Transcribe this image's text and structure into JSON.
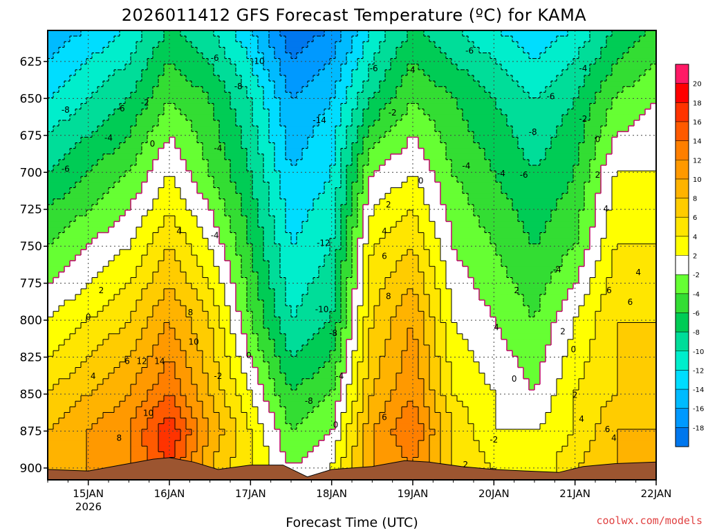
{
  "title": "2026011412 GFS Forecast Temperature (ºC) for KAMA",
  "xlabel": "Forecast Time (UTC)",
  "credit": "coolwx.com/models",
  "chart_data": {
    "type": "heatmap",
    "title": "2026011412 GFS Forecast Temperature (ºC) for KAMA",
    "xlabel": "Forecast Time (UTC)",
    "ylabel": "",
    "y_axis": {
      "ticks": [
        625,
        650,
        675,
        700,
        725,
        750,
        775,
        800,
        825,
        850,
        875,
        900
      ],
      "range": [
        604,
        908
      ],
      "inverted": true
    },
    "x_axis": {
      "tick_labels": [
        "15JAN",
        "16JAN",
        "17JAN",
        "18JAN",
        "19JAN",
        "20JAN",
        "21JAN",
        "22JAN"
      ],
      "sublabel": "2026",
      "range_days": [
        14.5,
        22.0
      ]
    },
    "colorbar": {
      "labels": [
        20,
        18,
        16,
        14,
        12,
        10,
        8,
        6,
        4,
        2,
        -2,
        -4,
        -6,
        -8,
        -10,
        -12,
        -14,
        -16,
        -18
      ],
      "colors": [
        "#ff1a66",
        "#ff0000",
        "#ff3300",
        "#ff5a00",
        "#ff7f00",
        "#ff9900",
        "#ffb300",
        "#ffcc00",
        "#ffe600",
        "#ffff00",
        "#ffffff",
        "#66ff33",
        "#33dd33",
        "#00cc55",
        "#00dd99",
        "#00eecc",
        "#00ddff",
        "#00bbff",
        "#0099ff",
        "#0077ee"
      ],
      "ranges": [
        [
          20,
          22
        ],
        [
          18,
          20
        ],
        [
          16,
          18
        ],
        [
          14,
          16
        ],
        [
          12,
          14
        ],
        [
          10,
          12
        ],
        [
          8,
          10
        ],
        [
          6,
          8
        ],
        [
          4,
          6
        ],
        [
          2,
          4
        ],
        [
          0,
          2
        ],
        [
          -2,
          0
        ],
        [
          -4,
          -2
        ],
        [
          -6,
          -4
        ],
        [
          -8,
          -6
        ],
        [
          -10,
          -8
        ],
        [
          -12,
          -10
        ],
        [
          -14,
          -12
        ],
        [
          -16,
          -14
        ],
        [
          -18,
          -16
        ]
      ]
    },
    "columns_temperature_by_pressure": [
      {
        "time": 14.5,
        "p650": -10,
        "p700": -6,
        "p750": -2,
        "p800": 2,
        "p850": 6,
        "p875": 8,
        "p900": 9
      },
      {
        "time": 15.0,
        "p650": -8,
        "p700": -4,
        "p750": 0,
        "p800": 4,
        "p850": 8,
        "p875": 10,
        "p900": 10
      },
      {
        "time": 15.5,
        "p650": -6,
        "p700": -2,
        "p750": 2,
        "p800": 6,
        "p850": 10,
        "p875": 12,
        "p900": 12
      },
      {
        "time": 16.0,
        "p650": -2,
        "p700": 2,
        "p750": 6,
        "p800": 10,
        "p850": 14,
        "p875": 18,
        "p900": 16
      },
      {
        "time": 16.5,
        "p650": -4,
        "p700": -2,
        "p750": 2,
        "p800": 6,
        "p850": 8,
        "p875": 10,
        "p900": 8
      },
      {
        "time": 17.0,
        "p650": -8,
        "p700": -6,
        "p750": -4,
        "p800": -2,
        "p850": 2,
        "p875": 4,
        "p900": 4
      },
      {
        "time": 17.5,
        "p650": -14,
        "p700": -12,
        "p750": -10,
        "p800": -8,
        "p850": -4,
        "p875": -2,
        "p900": 0
      },
      {
        "time": 18.0,
        "p650": -12,
        "p700": -10,
        "p750": -8,
        "p800": -6,
        "p850": -2,
        "p875": 0,
        "p900": 2
      },
      {
        "time": 18.5,
        "p650": -6,
        "p700": 0,
        "p750": 4,
        "p800": 6,
        "p850": 8,
        "p875": 10,
        "p900": 10
      },
      {
        "time": 19.0,
        "p650": -2,
        "p700": 2,
        "p750": 6,
        "p800": 10,
        "p850": 12,
        "p875": 14,
        "p900": 12
      },
      {
        "time": 19.5,
        "p650": -4,
        "p700": -2,
        "p750": 0,
        "p800": 2,
        "p850": 4,
        "p875": 6,
        "p900": 6
      },
      {
        "time": 20.0,
        "p650": -6,
        "p700": -4,
        "p750": -2,
        "p800": 0,
        "p850": 2,
        "p875": 2,
        "p900": 4
      },
      {
        "time": 20.5,
        "p650": -8,
        "p700": -6,
        "p750": -4,
        "p800": -2,
        "p850": 0,
        "p875": 2,
        "p900": 2
      },
      {
        "time": 21.0,
        "p650": -6,
        "p700": -4,
        "p750": -2,
        "p800": 2,
        "p850": 4,
        "p875": 4,
        "p900": 6
      },
      {
        "time": 21.5,
        "p650": -2,
        "p700": 2,
        "p750": 4,
        "p800": 6,
        "p850": 6,
        "p875": 8,
        "p900": 8
      },
      {
        "time": 22.0,
        "p650": 0,
        "p700": 2,
        "p750": 4,
        "p800": 6,
        "p850": 8,
        "p875": 8,
        "p900": 8
      }
    ],
    "contour_labels": [
      {
        "text": "-8",
        "time": 14.72,
        "p": 658
      },
      {
        "text": "-6",
        "time": 14.72,
        "p": 698
      },
      {
        "text": "-4",
        "time": 15.25,
        "p": 677
      },
      {
        "text": "-6",
        "time": 15.4,
        "p": 657
      },
      {
        "text": "-2",
        "time": 15.7,
        "p": 653
      },
      {
        "text": "0",
        "time": 15.79,
        "p": 681
      },
      {
        "text": "-6",
        "time": 16.56,
        "p": 623
      },
      {
        "text": "-8",
        "time": 16.85,
        "p": 642
      },
      {
        "text": "-10",
        "time": 17.09,
        "p": 625
      },
      {
        "text": "-4",
        "time": 16.6,
        "p": 684
      },
      {
        "text": "-14",
        "time": 17.85,
        "p": 665
      },
      {
        "text": "-12",
        "time": 17.9,
        "p": 748
      },
      {
        "text": "-10",
        "time": 17.88,
        "p": 793
      },
      {
        "text": "-8",
        "time": 18.02,
        "p": 809
      },
      {
        "text": "-8",
        "time": 17.72,
        "p": 855
      },
      {
        "text": "-4",
        "time": 18.1,
        "p": 838
      },
      {
        "text": "-6",
        "time": 18.52,
        "p": 630
      },
      {
        "text": "-4",
        "time": 18.98,
        "p": 631
      },
      {
        "text": "-2",
        "time": 18.75,
        "p": 660
      },
      {
        "text": "0",
        "time": 19.1,
        "p": 706
      },
      {
        "text": "2",
        "time": 18.7,
        "p": 722
      },
      {
        "text": "4",
        "time": 18.65,
        "p": 740
      },
      {
        "text": "6",
        "time": 18.65,
        "p": 757
      },
      {
        "text": "8",
        "time": 18.7,
        "p": 784
      },
      {
        "text": "6",
        "time": 18.65,
        "p": 866
      },
      {
        "text": "0",
        "time": 18.05,
        "p": 871
      },
      {
        "text": "-6",
        "time": 19.7,
        "p": 618
      },
      {
        "text": "-4",
        "time": 19.66,
        "p": 696
      },
      {
        "text": "-4",
        "time": 20.09,
        "p": 701
      },
      {
        "text": "-6",
        "time": 20.37,
        "p": 702
      },
      {
        "text": "-8",
        "time": 20.48,
        "p": 673
      },
      {
        "text": "-6",
        "time": 20.7,
        "p": 649
      },
      {
        "text": "-4",
        "time": 21.1,
        "p": 630
      },
      {
        "text": "-2",
        "time": 21.1,
        "p": 664
      },
      {
        "text": "0",
        "time": 21.28,
        "p": 678
      },
      {
        "text": "2",
        "time": 21.28,
        "p": 702
      },
      {
        "text": "4",
        "time": 21.38,
        "p": 725
      },
      {
        "text": "-4",
        "time": 20.78,
        "p": 766
      },
      {
        "text": "2",
        "time": 20.28,
        "p": 780
      },
      {
        "text": "4",
        "time": 20.03,
        "p": 805
      },
      {
        "text": "2",
        "time": 20.85,
        "p": 808
      },
      {
        "text": "0",
        "time": 20.98,
        "p": 820
      },
      {
        "text": "0",
        "time": 20.25,
        "p": 840
      },
      {
        "text": "2",
        "time": 21.0,
        "p": 851
      },
      {
        "text": "4",
        "time": 21.08,
        "p": 867
      },
      {
        "text": "6",
        "time": 21.4,
        "p": 874
      },
      {
        "text": "6",
        "time": 21.42,
        "p": 780
      },
      {
        "text": "6",
        "time": 21.68,
        "p": 788
      },
      {
        "text": "4",
        "time": 21.78,
        "p": 768
      },
      {
        "text": "-4",
        "time": 16.56,
        "p": 743
      },
      {
        "text": "-2",
        "time": 16.6,
        "p": 838
      },
      {
        "text": "0",
        "time": 16.98,
        "p": 824
      },
      {
        "text": "2",
        "time": 15.16,
        "p": 780
      },
      {
        "text": "0",
        "time": 15.0,
        "p": 798
      },
      {
        "text": "4",
        "time": 15.06,
        "p": 838
      },
      {
        "text": "6",
        "time": 15.48,
        "p": 828
      },
      {
        "text": "8",
        "time": 15.38,
        "p": 880
      },
      {
        "text": "10",
        "time": 15.74,
        "p": 863
      },
      {
        "text": "12",
        "time": 15.66,
        "p": 828
      },
      {
        "text": "14",
        "time": 15.88,
        "p": 828
      },
      {
        "text": "10",
        "time": 16.3,
        "p": 815
      },
      {
        "text": "8",
        "time": 16.26,
        "p": 795
      },
      {
        "text": "4",
        "time": 16.12,
        "p": 740
      },
      {
        "text": "-2",
        "time": 20.0,
        "p": 881
      },
      {
        "text": "2",
        "time": 19.65,
        "p": 898
      },
      {
        "text": "4",
        "time": 21.48,
        "p": 880
      }
    ]
  }
}
